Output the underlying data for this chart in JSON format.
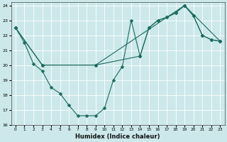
{
  "xlabel": "Humidex (Indice chaleur)",
  "xlim": [
    -0.5,
    23.5
  ],
  "ylim": [
    16,
    24.2
  ],
  "xticks": [
    0,
    1,
    2,
    3,
    4,
    5,
    6,
    7,
    8,
    9,
    10,
    11,
    12,
    13,
    14,
    15,
    16,
    17,
    18,
    19,
    20,
    21,
    22,
    23
  ],
  "yticks": [
    16,
    17,
    18,
    19,
    20,
    21,
    22,
    23,
    24
  ],
  "bg_color": "#cce8ea",
  "grid_color": "#ffffff",
  "line_color": "#1a6b60",
  "line1_x": [
    0,
    1,
    2,
    3,
    4,
    5,
    6,
    7,
    8,
    9,
    10,
    11,
    12,
    13,
    14,
    15,
    16,
    17,
    18,
    19,
    20,
    21,
    22,
    23
  ],
  "line1_y": [
    22.5,
    21.5,
    20.1,
    19.6,
    18.5,
    18.1,
    17.3,
    16.6,
    16.6,
    16.6,
    17.1,
    19.0,
    19.9,
    23.0,
    20.6,
    22.5,
    23.0,
    23.2,
    23.5,
    24.0,
    23.3,
    22.0,
    21.7,
    21.6
  ],
  "line2_x": [
    0,
    3,
    9,
    14,
    15,
    16,
    17,
    18,
    19,
    20,
    21,
    22,
    23
  ],
  "line2_y": [
    22.5,
    20.0,
    20.0,
    20.6,
    22.5,
    23.0,
    23.2,
    23.5,
    24.0,
    23.3,
    22.0,
    21.7,
    21.6
  ],
  "line3_x": [
    0,
    3,
    9,
    19,
    23
  ],
  "line3_y": [
    22.5,
    20.0,
    20.0,
    24.0,
    21.6
  ],
  "markersize": 2.5
}
